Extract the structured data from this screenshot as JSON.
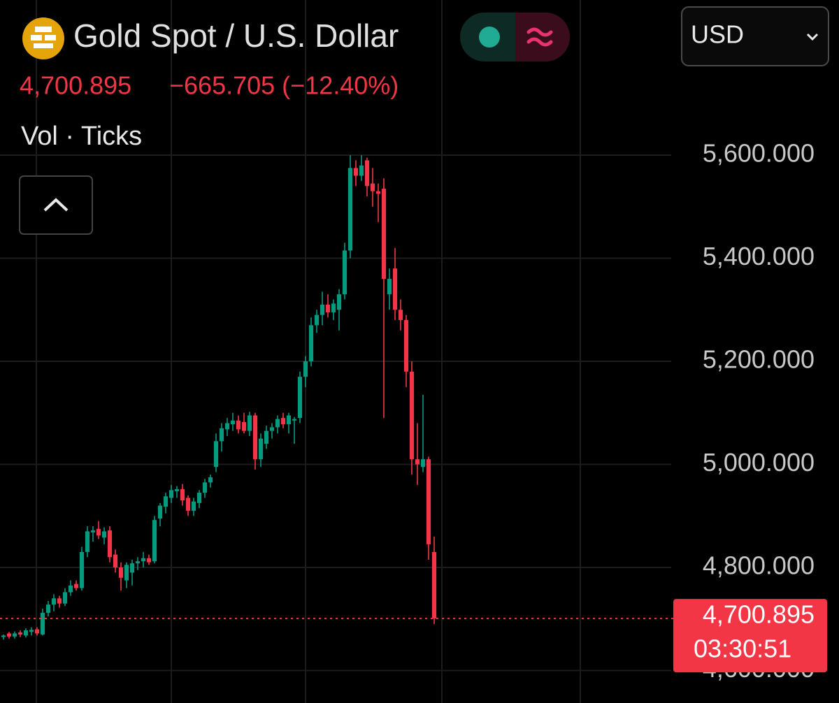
{
  "chart_data": {
    "type": "candlestick",
    "title": "Gold Spot / U.S. Dollar",
    "change": "−665.705 (−12.40%)",
    "indicator_label": "Vol · Ticks",
    "currency": "USD",
    "countdown": "03:30:51",
    "last_price": {
      "value": 4700.895,
      "label": "4,700.895"
    },
    "up_color": "#089981",
    "down_color": "#f23645",
    "grid": true,
    "ylim": [
      4537,
      5901
    ],
    "yticks": [
      {
        "value": 4600,
        "label": "4,600.000"
      },
      {
        "value": 4800,
        "label": "4,800.000"
      },
      {
        "value": 5000,
        "label": "5,000.000"
      },
      {
        "value": 5200,
        "label": "5,200.000"
      },
      {
        "value": 5400,
        "label": "5,400.000"
      },
      {
        "value": 5600,
        "label": "5,600.000"
      }
    ],
    "open": [
      4665,
      4672,
      4666,
      4674,
      4668,
      4675,
      4680,
      4670,
      4712,
      4728,
      4740,
      4730,
      4752,
      4768,
      4760,
      4830,
      4868,
      4875,
      4858,
      4872,
      4825,
      4800,
      4775,
      4790,
      4808,
      4812,
      4818,
      4812,
      4895,
      4918,
      4935,
      4948,
      4952,
      4935,
      4910,
      4925,
      4945,
      4965,
      4995,
      5045,
      5068,
      5078,
      5085,
      5082,
      5065,
      5095,
      5010,
      5040,
      5065,
      5072,
      5090,
      5078,
      5085,
      5090,
      5170,
      5200,
      5270,
      5290,
      5310,
      5295,
      5300,
      5330,
      5415,
      5575,
      5560,
      5590,
      5545,
      5530,
      5535,
      5330,
      5380,
      5300,
      5280,
      5180,
      5010,
      4995,
      5010,
      4830
    ],
    "high": [
      4670,
      4675,
      4676,
      4678,
      4682,
      4684,
      4684,
      4720,
      4735,
      4748,
      4745,
      4760,
      4775,
      4775,
      4840,
      4880,
      4880,
      4890,
      4878,
      4880,
      4835,
      4810,
      4810,
      4815,
      4820,
      4830,
      4825,
      4900,
      4925,
      4945,
      4960,
      4958,
      4962,
      4940,
      4935,
      4950,
      4972,
      4980,
      5060,
      5080,
      5090,
      5100,
      5095,
      5100,
      5102,
      5100,
      5060,
      5075,
      5080,
      5095,
      5100,
      5100,
      5092,
      5180,
      5210,
      5285,
      5300,
      5335,
      5330,
      5320,
      5340,
      5430,
      5600,
      5590,
      5600,
      5595,
      5575,
      5545,
      5555,
      5380,
      5420,
      5320,
      5290,
      5200,
      5080,
      5135,
      5015,
      4860
    ],
    "low": [
      4660,
      4662,
      4662,
      4665,
      4664,
      4668,
      4668,
      4668,
      4705,
      4715,
      4722,
      4725,
      4745,
      4755,
      4755,
      4820,
      4850,
      4855,
      4845,
      4810,
      4790,
      4755,
      4760,
      4765,
      4795,
      4800,
      4805,
      4808,
      4880,
      4905,
      4925,
      4935,
      4920,
      4900,
      4900,
      4915,
      4935,
      4955,
      4985,
      5025,
      5055,
      5065,
      5060,
      5060,
      5055,
      4990,
      4995,
      5030,
      5050,
      5060,
      5070,
      5060,
      5040,
      5080,
      5150,
      5190,
      5255,
      5270,
      5285,
      5280,
      5260,
      5320,
      5400,
      5540,
      5550,
      5520,
      5500,
      5470,
      5090,
      5300,
      5280,
      5260,
      5150,
      4980,
      4960,
      4985,
      4815,
      4690
    ],
    "close": [
      4668,
      4666,
      4672,
      4670,
      4678,
      4679,
      4672,
      4712,
      4728,
      4740,
      4730,
      4752,
      4765,
      4760,
      4830,
      4870,
      4872,
      4862,
      4870,
      4820,
      4800,
      4780,
      4805,
      4808,
      4812,
      4818,
      4810,
      4892,
      4920,
      4938,
      4950,
      4952,
      4930,
      4910,
      4928,
      4945,
      4965,
      4975,
      5045,
      5070,
      5080,
      5085,
      5068,
      5065,
      5095,
      5010,
      5050,
      5065,
      5072,
      5088,
      5078,
      5095,
      5088,
      5170,
      5200,
      5270,
      5290,
      5310,
      5295,
      5312,
      5330,
      5415,
      5575,
      5560,
      5580,
      5540,
      5530,
      5525,
      5360,
      5360,
      5300,
      5280,
      5180,
      5010,
      5000,
      5010,
      4845,
      4700.895
    ]
  }
}
